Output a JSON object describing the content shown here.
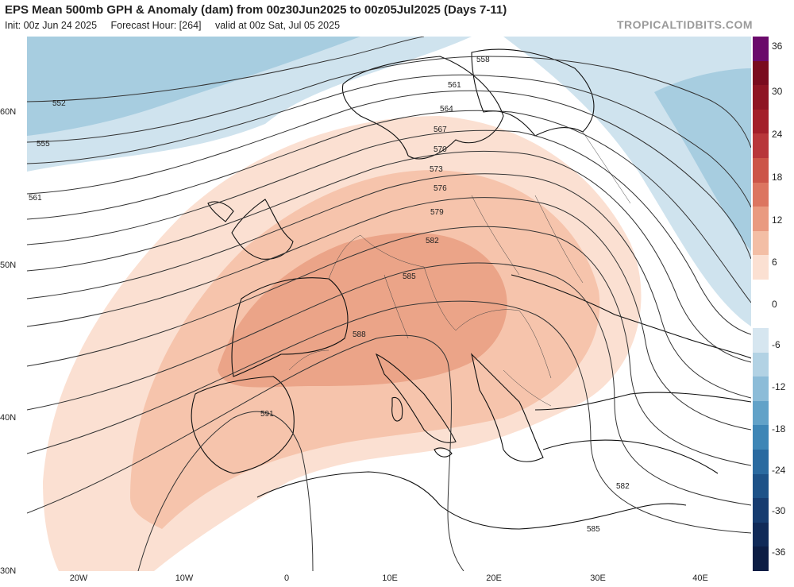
{
  "header": {
    "title": "EPS Mean 500mb GPH & Anomaly (dam) from 00z30Jun2025 to 00z05Jul2025 (Days 7-11)",
    "init": "Init: 00z Jun 24 2025",
    "forecast_hour": "Forecast Hour: [264]",
    "valid": "valid at 00z Sat, Jul 05 2025"
  },
  "brand": "TROPICALTIDBITS.COM",
  "lat_labels": [
    "60N",
    "50N",
    "40N",
    "30N"
  ],
  "lon_labels": [
    "20W",
    "10W",
    "0",
    "10E",
    "20E",
    "30E",
    "40E"
  ],
  "colorbar": {
    "labels": [
      "36",
      "30",
      "24",
      "18",
      "12",
      "6",
      "0",
      "-6",
      "-12",
      "-18",
      "-24",
      "-30",
      "-36"
    ],
    "colors": [
      "#6b0a6b",
      "#7a0b1e",
      "#8e1423",
      "#a31f2a",
      "#b8363a",
      "#cc5548",
      "#dc7560",
      "#e99a80",
      "#f3bea5",
      "#fbe0d2",
      "#ffffff",
      "#ffffff",
      "#d6e6f0",
      "#b2d2e4",
      "#8cbcd8",
      "#62a2c8",
      "#3e86b6",
      "#2a6aa0",
      "#1d5288",
      "#163c70",
      "#102a58",
      "#0c1d44"
    ]
  },
  "contours": {
    "labels": [
      "552",
      "555",
      "558",
      "561",
      "564",
      "567",
      "570",
      "573",
      "576",
      "579",
      "582",
      "585",
      "588",
      "591",
      "561",
      "582",
      "585"
    ]
  },
  "colors": {
    "positive_anomaly_light": "#fbe0d2",
    "positive_anomaly_mid": "#f6c4ac",
    "positive_anomaly_strong": "#eba488",
    "negative_anomaly_light": "#cfe3ee",
    "negative_anomaly_mid": "#a7cde0",
    "contour": "#333333",
    "land_border": "#111111"
  }
}
